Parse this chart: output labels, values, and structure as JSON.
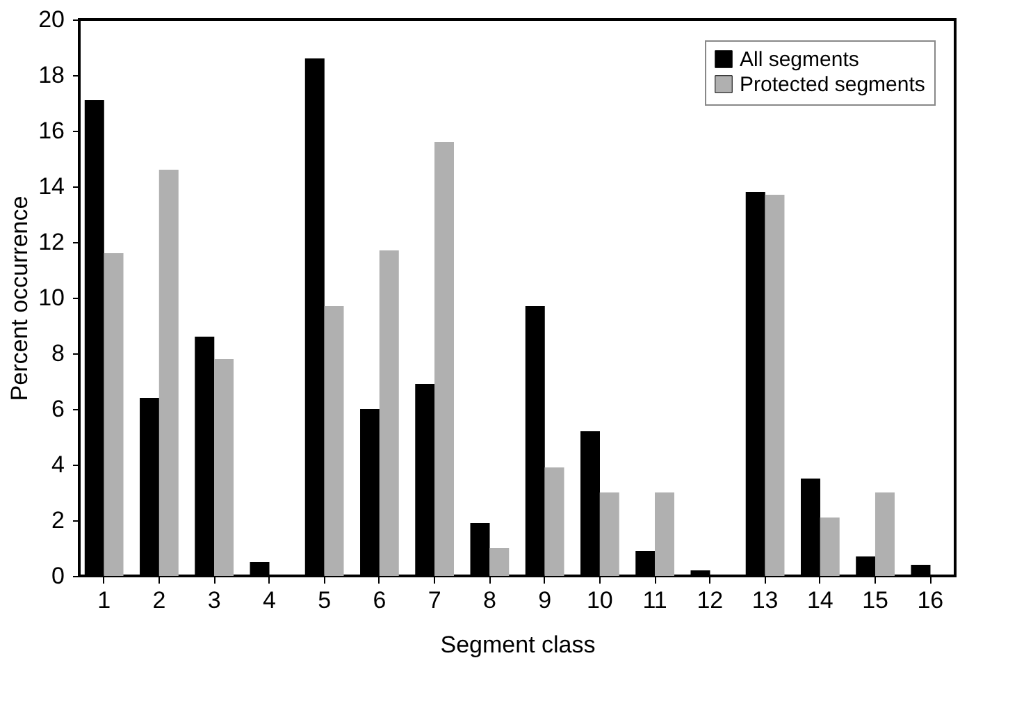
{
  "chart_data": {
    "type": "bar",
    "xlabel": "Segment class",
    "ylabel": "Percent occurrence",
    "categories": [
      "1",
      "2",
      "3",
      "4",
      "5",
      "6",
      "7",
      "8",
      "9",
      "10",
      "11",
      "12",
      "13",
      "14",
      "15",
      "16"
    ],
    "series": [
      {
        "name": "All segments",
        "color": "#000000",
        "values": [
          17.1,
          6.4,
          8.6,
          0.5,
          18.6,
          6.0,
          6.9,
          1.9,
          9.7,
          5.2,
          0.9,
          0.2,
          13.8,
          3.5,
          0.7,
          0.4
        ]
      },
      {
        "name": "Protected segments",
        "color": "#b0b0b0",
        "values": [
          11.6,
          14.6,
          7.8,
          0,
          9.7,
          11.7,
          15.6,
          1.0,
          3.9,
          3.0,
          3.0,
          0,
          13.7,
          2.1,
          3.0,
          0
        ]
      }
    ],
    "ylim": [
      0,
      20
    ],
    "yticks": [
      0,
      2,
      4,
      6,
      8,
      10,
      12,
      14,
      16,
      18,
      20
    ],
    "grid": false,
    "legend": "top right"
  }
}
